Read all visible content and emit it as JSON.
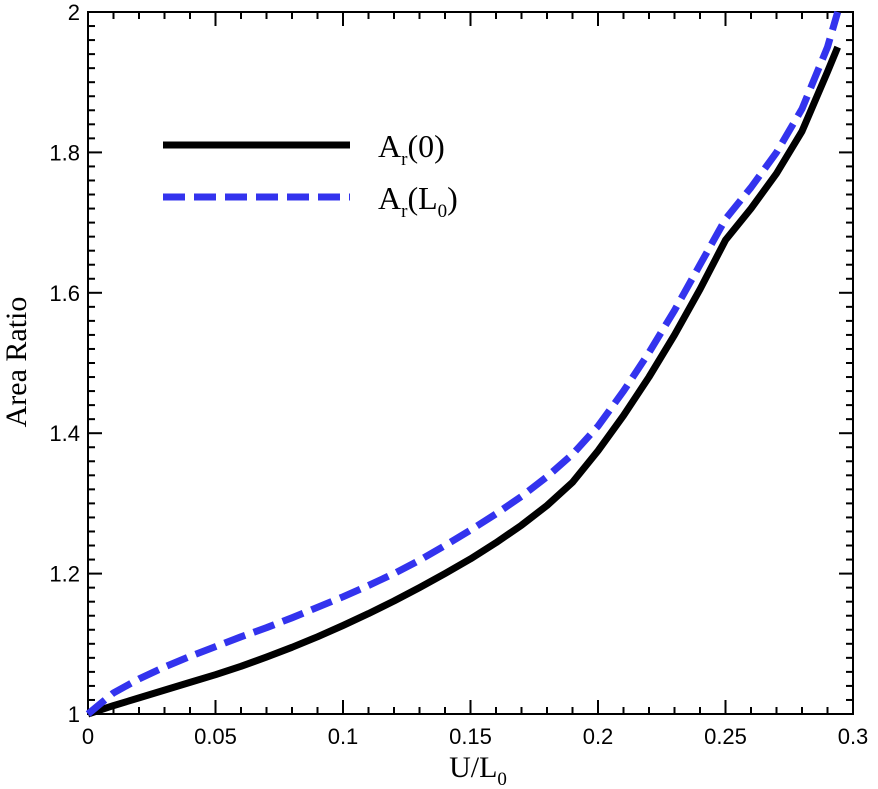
{
  "chart_data": {
    "type": "line",
    "xlabel": {
      "main": "U/L",
      "sub": "0"
    },
    "ylabel": "Area Ratio",
    "xlim": [
      0,
      0.3
    ],
    "ylim": [
      1,
      2
    ],
    "x_ticks": [
      "0",
      "0.05",
      "0.1",
      "0.15",
      "0.2",
      "0.25",
      "0.3"
    ],
    "y_ticks": [
      "1",
      "1.2",
      "1.4",
      "1.6",
      "1.8",
      "2"
    ],
    "grid": false,
    "legend_position": "top-left",
    "series": [
      {
        "legend": {
          "main": "A",
          "sub": "r",
          "tail": "(0)"
        },
        "color": "#000000",
        "dash": "solid",
        "x": [
          0,
          0.01,
          0.02,
          0.03,
          0.04,
          0.05,
          0.06,
          0.07,
          0.08,
          0.09,
          0.1,
          0.11,
          0.12,
          0.13,
          0.14,
          0.15,
          0.16,
          0.17,
          0.18,
          0.19,
          0.2,
          0.21,
          0.22,
          0.23,
          0.24,
          0.25,
          0.26,
          0.27,
          0.28,
          0.29,
          0.294
        ],
        "y": [
          1.0,
          1.012,
          1.023,
          1.034,
          1.045,
          1.056,
          1.068,
          1.081,
          1.095,
          1.11,
          1.126,
          1.143,
          1.161,
          1.18,
          1.2,
          1.221,
          1.244,
          1.269,
          1.297,
          1.33,
          1.375,
          1.425,
          1.48,
          1.54,
          1.605,
          1.675,
          1.72,
          1.77,
          1.83,
          1.915,
          1.95
        ]
      },
      {
        "legend": {
          "main": "A",
          "sub": "r",
          "tail": "(L",
          "sub2": "0",
          "tail2": ")"
        },
        "color": "#3333ee",
        "dash": "dashed",
        "x": [
          0,
          0.01,
          0.02,
          0.03,
          0.04,
          0.05,
          0.06,
          0.07,
          0.08,
          0.09,
          0.1,
          0.11,
          0.12,
          0.13,
          0.14,
          0.15,
          0.16,
          0.17,
          0.18,
          0.19,
          0.2,
          0.21,
          0.22,
          0.23,
          0.24,
          0.25,
          0.26,
          0.27,
          0.28,
          0.29,
          0.294
        ],
        "y": [
          1.0,
          1.03,
          1.05,
          1.067,
          1.082,
          1.096,
          1.11,
          1.123,
          1.137,
          1.152,
          1.167,
          1.183,
          1.2,
          1.219,
          1.24,
          1.262,
          1.285,
          1.31,
          1.338,
          1.37,
          1.41,
          1.46,
          1.515,
          1.575,
          1.64,
          1.705,
          1.75,
          1.8,
          1.862,
          1.95,
          2.0
        ]
      }
    ]
  }
}
